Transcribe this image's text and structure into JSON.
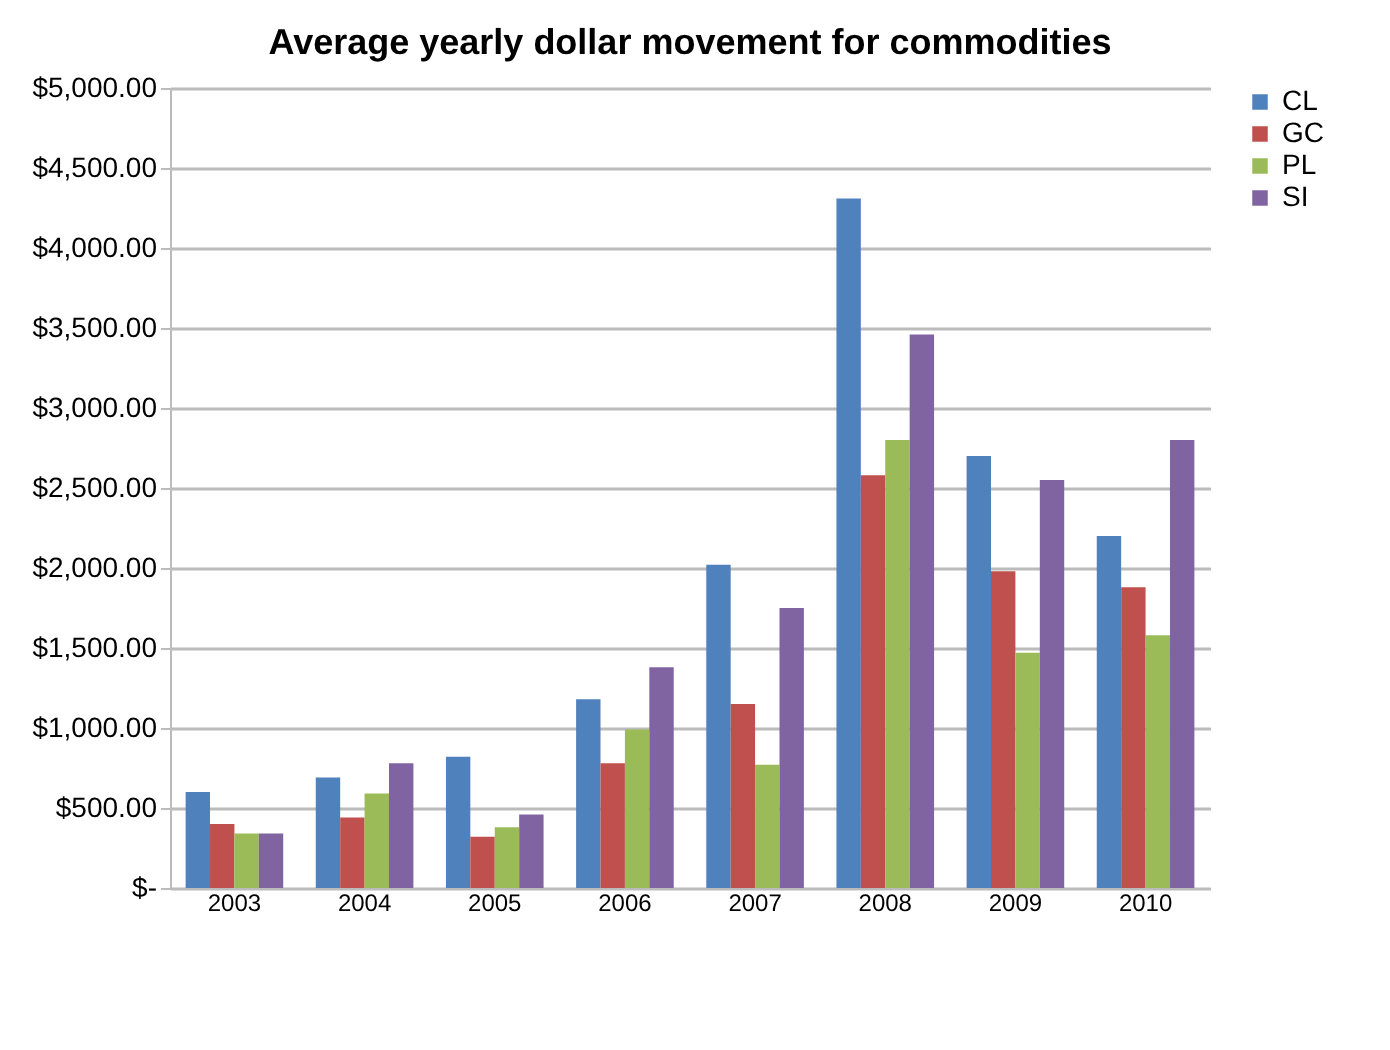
{
  "chart_data": {
    "type": "bar",
    "title": "Average yearly dollar movement for commodities",
    "categories": [
      "2003",
      "2004",
      "2005",
      "2006",
      "2007",
      "2008",
      "2009",
      "2010"
    ],
    "series": [
      {
        "name": "CL",
        "color": "#4f81bd",
        "values": [
          600,
          690,
          820,
          1180,
          2020,
          4310,
          2700,
          2200
        ]
      },
      {
        "name": "GC",
        "color": "#c0504d",
        "values": [
          400,
          440,
          320,
          780,
          1150,
          2580,
          1980,
          1880
        ]
      },
      {
        "name": "PL",
        "color": "#9bbb59",
        "values": [
          340,
          590,
          380,
          990,
          770,
          2800,
          1470,
          1580
        ]
      },
      {
        "name": "SI",
        "color": "#8064a2",
        "values": [
          340,
          780,
          460,
          1380,
          1750,
          3460,
          2550,
          2800
        ]
      }
    ],
    "ylim": [
      0,
      5000
    ],
    "yticks": [
      {
        "value": 0,
        "label": "$-"
      },
      {
        "value": 500,
        "label": "$500.00"
      },
      {
        "value": 1000,
        "label": "$1,000.00"
      },
      {
        "value": 1500,
        "label": "$1,500.00"
      },
      {
        "value": 2000,
        "label": "$2,000.00"
      },
      {
        "value": 2500,
        "label": "$2,500.00"
      },
      {
        "value": 3000,
        "label": "$3,000.00"
      },
      {
        "value": 3500,
        "label": "$3,500.00"
      },
      {
        "value": 4000,
        "label": "$4,000.00"
      },
      {
        "value": 4500,
        "label": "$4,500.00"
      },
      {
        "value": 5000,
        "label": "$5,000.00"
      }
    ],
    "grid": "y",
    "legend": "right"
  }
}
